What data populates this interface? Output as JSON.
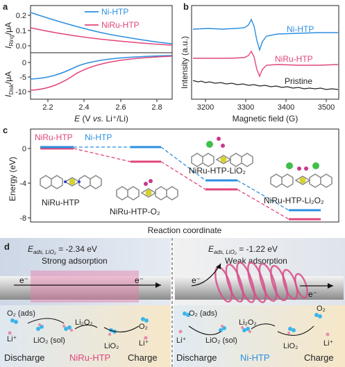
{
  "colors": {
    "blue": "#2b8fe0",
    "pink": "#e0457a",
    "black": "#222222"
  },
  "panel_a": {
    "letter": "a",
    "legend": [
      "Ni-HTP",
      "NiRu-HTP"
    ],
    "y_top_label": "I",
    "y_top_sub": "Ring",
    "y_top_unit": "/μA",
    "y_bot_label": "I",
    "y_bot_sub": "Disk",
    "y_bot_unit": "/μA",
    "x_label_E": "E",
    "x_label_rest": " (V ",
    "x_label_vs": "vs.",
    "x_label_end": " Li⁺/Li)",
    "top_ticks": [
      "0.2",
      "0.1",
      "0.0"
    ],
    "bot_ticks": [
      "0",
      "-5",
      "-10"
    ],
    "x_ticks": [
      "2.2",
      "2.4",
      "2.6",
      "2.8"
    ]
  },
  "panel_b": {
    "letter": "b",
    "ylabel": "Intensity (a.u.)",
    "xlabel": "Magnetic field (G)",
    "x_ticks": [
      "3200",
      "3300",
      "3400",
      "3500"
    ],
    "labels": [
      "Ni-HTP",
      "NiRu-HTP",
      "Pristine"
    ]
  },
  "panel_c": {
    "letter": "c",
    "legend": [
      "NiRu-HTP",
      "Ni-HTP"
    ],
    "ylabel": "Energy (eV)",
    "xlabel": "Reaction coordinate",
    "y_ticks": [
      "0",
      "-4",
      "-8"
    ],
    "species": [
      "NiRu-HTP",
      "NiRu-HTP-O₂",
      "NiRu-HTP-LiO₂",
      "NiRu-HTP-Li₂O₂"
    ]
  },
  "panel_d": {
    "letter": "d",
    "left": {
      "eads_prefix": "E",
      "eads_sub": "ads, LiO₂",
      "eads_value": " = -2.34 eV",
      "desc": "Strong adsorption",
      "electron": "e⁻",
      "labels": [
        "O₂ (ads)",
        "LiO₂ (sol)",
        "Li₂O₂",
        "LiO₂",
        "O₂",
        "Li⁺",
        "Li⁺"
      ],
      "bottom": [
        "Discharge",
        "NiRu-HTP",
        "Charge"
      ]
    },
    "right": {
      "eads_prefix": "E",
      "eads_sub": "ads, LiO₂",
      "eads_value": " = -1.22 eV",
      "desc": "Weak adsorption",
      "electron": "e⁻",
      "labels": [
        "O₂ (ads)",
        "LiO₂ (sol)",
        "Li₂O₂",
        "LiO₂",
        "O₂",
        "Li⁺",
        "Li⁺"
      ],
      "bottom": [
        "Discharge",
        "Ni-HTP",
        "Charge"
      ]
    }
  }
}
